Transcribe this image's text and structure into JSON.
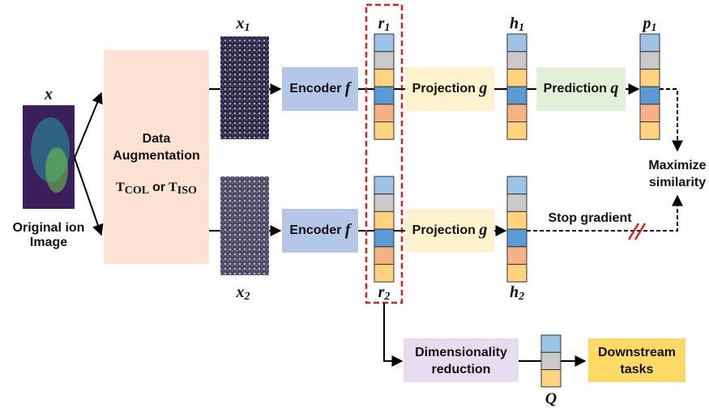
{
  "input": {
    "symbol": "x",
    "caption": [
      "Original ion",
      "Image"
    ]
  },
  "augmentation": {
    "title": [
      "Data",
      "Augmentation"
    ],
    "transform": {
      "first": "T",
      "first_sub": "COL",
      "joiner": "or",
      "second": "T",
      "second_sub": "ISO"
    }
  },
  "views": [
    {
      "symbol": "x",
      "sub": "1"
    },
    {
      "symbol": "x",
      "sub": "2"
    }
  ],
  "encoders": [
    {
      "label": "Encoder",
      "var": "f"
    },
    {
      "label": "Encoder",
      "var": "f"
    }
  ],
  "representations": [
    {
      "symbol": "r",
      "sub": "1"
    },
    {
      "symbol": "r",
      "sub": "2"
    }
  ],
  "projections": [
    {
      "label": "Projection",
      "var": "g"
    },
    {
      "label": "Projection",
      "var": "g"
    }
  ],
  "projected": [
    {
      "symbol": "h",
      "sub": "1"
    },
    {
      "symbol": "h",
      "sub": "2"
    }
  ],
  "prediction": {
    "label": "Prediction",
    "var": "q",
    "output": {
      "symbol": "p",
      "sub": "1"
    }
  },
  "objective": [
    "Maximize",
    "similarity"
  ],
  "stop_gradient": "Stop gradient",
  "reduction": {
    "label": [
      "Dimensionality",
      "reduction"
    ],
    "output": "Q"
  },
  "downstream": [
    "Downstream",
    "tasks"
  ]
}
